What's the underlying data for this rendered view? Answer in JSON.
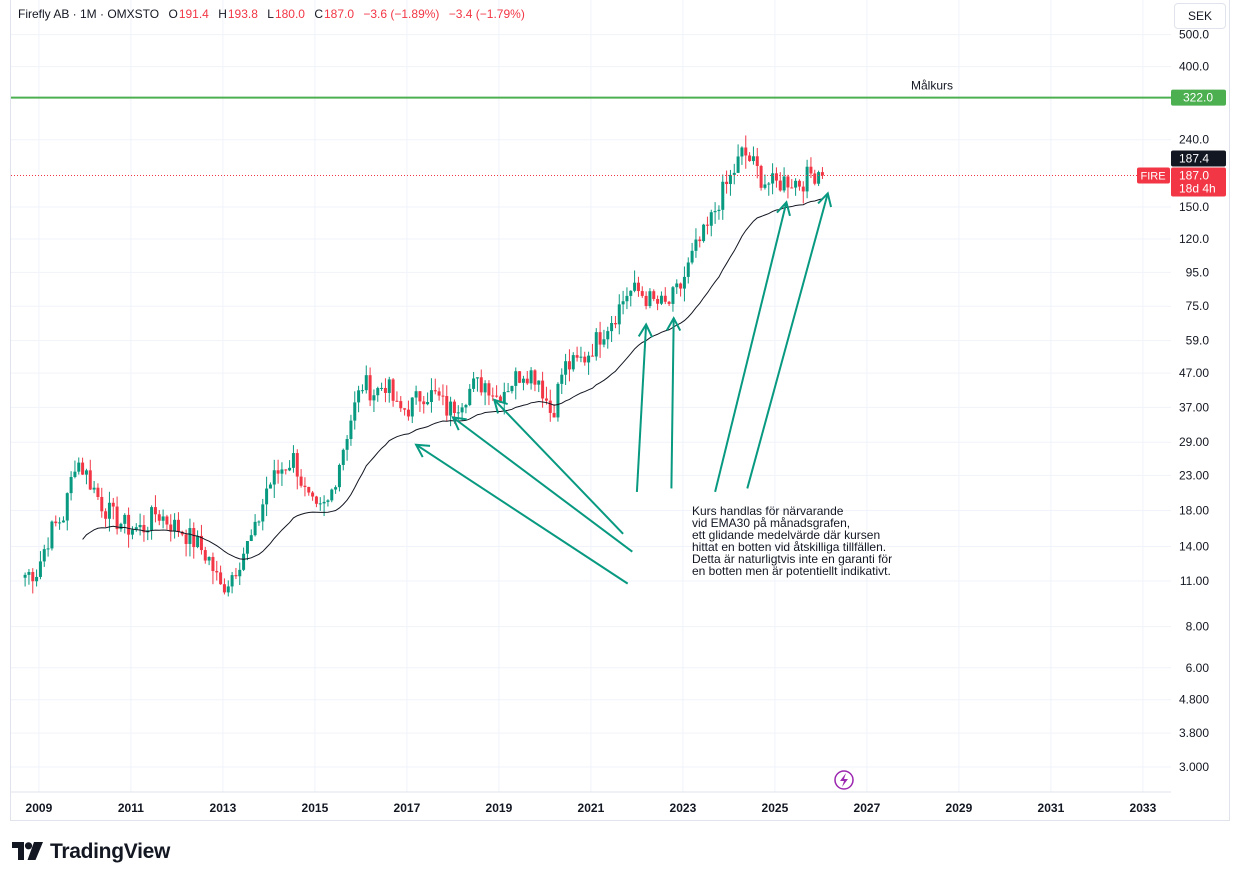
{
  "header": {
    "symbol": "Firefly AB · 1M · OMXSTO",
    "open_label": "O",
    "open": "191.4",
    "high_label": "H",
    "high": "193.8",
    "low_label": "L",
    "low": "180.0",
    "close_label": "C",
    "close": "187.0",
    "change": "−3.6 (−1.89%)",
    "change2": "−3.4 (−1.79%)"
  },
  "currency_button": "SEK",
  "brand": "TradingView",
  "colors": {
    "up": "#089981",
    "down": "#f23645",
    "target": "#4caf50",
    "ema": "#131722",
    "annotation": "#089981"
  },
  "chart_data": {
    "type": "candlestick",
    "title": "Firefly AB · 1M · OMXSTO",
    "yscale": "log",
    "ylim": [
      2.7,
      560
    ],
    "xlim": [
      2008.3,
      2033.3
    ],
    "x_ticks": [
      "2009",
      "2011",
      "2013",
      "2015",
      "2017",
      "2019",
      "2021",
      "2023",
      "2025",
      "2027",
      "2029",
      "2031",
      "2033"
    ],
    "y_ticks": [
      "3.000",
      "3.800",
      "4.800",
      "6.00",
      "8.00",
      "11.00",
      "14.00",
      "18.00",
      "23.00",
      "29.00",
      "37.00",
      "47.00",
      "59.0",
      "75.0",
      "95.0",
      "120.0",
      "150.0",
      "240.0",
      "400.0",
      "500.0"
    ],
    "price_path": [
      [
        2008.75,
        11.5
      ],
      [
        2009.0,
        11.8
      ],
      [
        2009.3,
        15.5
      ],
      [
        2009.6,
        17.5
      ],
      [
        2009.85,
        26
      ],
      [
        2010.1,
        23
      ],
      [
        2010.4,
        19
      ],
      [
        2010.7,
        17
      ],
      [
        2011.0,
        16
      ],
      [
        2011.3,
        15.8
      ],
      [
        2011.6,
        17.8
      ],
      [
        2011.9,
        16.5
      ],
      [
        2012.2,
        15.5
      ],
      [
        2012.5,
        14.2
      ],
      [
        2012.75,
        12.8
      ],
      [
        2013.0,
        10.5
      ],
      [
        2013.2,
        11.2
      ],
      [
        2013.5,
        13.5
      ],
      [
        2013.75,
        15.5
      ],
      [
        2014.0,
        21
      ],
      [
        2014.3,
        24
      ],
      [
        2014.6,
        26
      ],
      [
        2014.85,
        20
      ],
      [
        2015.1,
        17.5
      ],
      [
        2015.35,
        19
      ],
      [
        2015.6,
        26
      ],
      [
        2015.85,
        35
      ],
      [
        2016.1,
        44
      ],
      [
        2016.35,
        41
      ],
      [
        2016.6,
        44
      ],
      [
        2016.85,
        36
      ],
      [
        2017.1,
        37
      ],
      [
        2017.4,
        41
      ],
      [
        2017.7,
        40
      ],
      [
        2017.95,
        36
      ],
      [
        2018.2,
        39
      ],
      [
        2018.5,
        43
      ],
      [
        2018.8,
        44
      ],
      [
        2019.0,
        40
      ],
      [
        2019.3,
        44
      ],
      [
        2019.6,
        48
      ],
      [
        2019.9,
        46
      ],
      [
        2020.2,
        35
      ],
      [
        2020.45,
        49
      ],
      [
        2020.7,
        50
      ],
      [
        2020.95,
        53
      ],
      [
        2021.3,
        63
      ],
      [
        2021.6,
        72
      ],
      [
        2021.85,
        83
      ],
      [
        2022.1,
        83
      ],
      [
        2022.4,
        77
      ],
      [
        2022.7,
        75
      ],
      [
        2023.0,
        86
      ],
      [
        2023.3,
        110
      ],
      [
        2023.6,
        130
      ],
      [
        2023.85,
        160
      ],
      [
        2024.1,
        185
      ],
      [
        2024.35,
        220
      ],
      [
        2024.55,
        205
      ],
      [
        2024.8,
        180
      ],
      [
        2025.05,
        175
      ],
      [
        2025.3,
        182
      ],
      [
        2025.6,
        178
      ],
      [
        2025.85,
        190
      ],
      [
        2026.05,
        192
      ],
      [
        2026.15,
        187
      ]
    ],
    "target_line": {
      "value": 322.0,
      "label": "Målkurs"
    },
    "last_price": {
      "symbol": "FIRE",
      "value": 187.0,
      "countdown": "18d 4h"
    },
    "high_marker": 187.4,
    "indicator": "EMA30",
    "annotation": {
      "lines": [
        "Kurs handlas för närvarande",
        "vid EMA30 på månadsgrafen,",
        "ett glidande medelvärde där kursen",
        "hittat en botten vid åtskilliga tillfällen.",
        "Detta är naturligtvis inte en garanti för",
        "en botten men är potentiellt indikativt."
      ],
      "arrow_targets": [
        [
          2017.25,
          28.5
        ],
        [
          2018.05,
          34.5
        ],
        [
          2018.95,
          39
        ],
        [
          2022.25,
          66
        ],
        [
          2022.85,
          69
        ],
        [
          2025.3,
          155
        ],
        [
          2026.2,
          165
        ]
      ],
      "arrow_sources": [
        [
          2021.85,
          10.8
        ],
        [
          2021.95,
          13.5
        ],
        [
          2021.75,
          15.3
        ],
        [
          2022.05,
          20.5
        ],
        [
          2022.8,
          21.0
        ],
        [
          2023.75,
          20.5
        ],
        [
          2024.45,
          21.0
        ]
      ]
    }
  }
}
